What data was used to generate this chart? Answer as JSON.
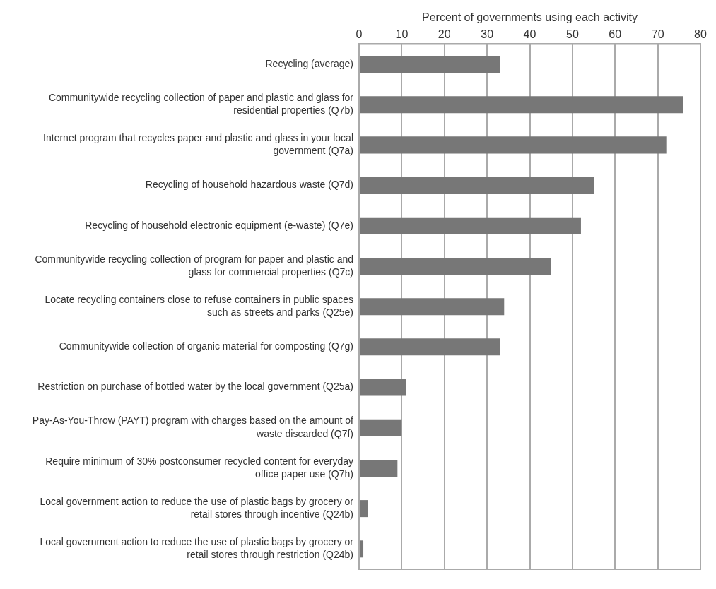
{
  "chart_data": {
    "type": "bar",
    "orientation": "horizontal",
    "xlabel": "Percent of governments using each activity",
    "categories": [
      "Recycling (average)",
      "Communitywide recycling collection of paper and plastic and glass for residential properties (Q7b)",
      "Internet program that recycles paper and plastic and glass in your local government (Q7a)",
      "Recycling of household hazardous waste (Q7d)",
      "Recycling of household electronic equipment (e-waste) (Q7e)",
      "Communitywide recycling collection of program for paper and plastic and glass for commercial properties (Q7c)",
      "Locate recycling containers close to refuse containers in public spaces such as streets and parks (Q25e)",
      "Communitywide collection of organic material for composting (Q7g)",
      "Restriction on purchase of bottled water by the local government (Q25a)",
      "Pay-As-You-Throw (PAYT) program with charges based on the amount of waste discarded (Q7f)",
      "Require minimum of 30% postconsumer recycled content for everyday office paper use (Q7h)",
      "Local government action to reduce the use of plastic bags by grocery or retail stores through incentive (Q24b)",
      "Local government action to reduce the use of plastic bags by grocery or retail stores through restriction (Q24b)"
    ],
    "values": [
      33,
      76,
      72,
      55,
      52,
      45,
      34,
      33,
      11,
      10,
      9,
      2,
      1
    ],
    "color": "#777777",
    "xlim": [
      0,
      80
    ],
    "xticks": [
      0,
      10,
      20,
      30,
      40,
      50,
      60,
      70,
      80
    ],
    "grid": "x",
    "legend": false
  }
}
